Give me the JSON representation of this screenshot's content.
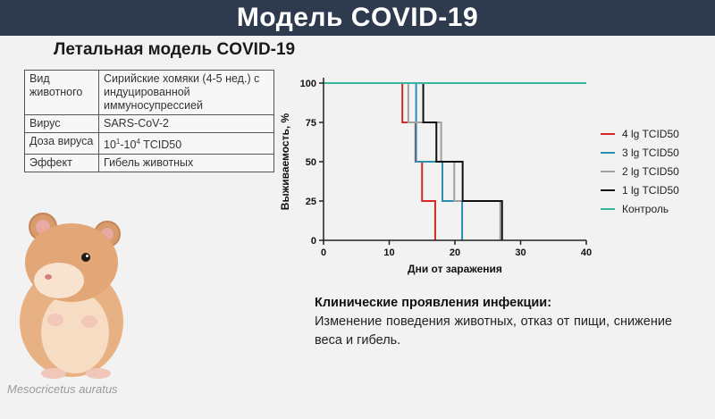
{
  "header": {
    "title": "Модель COVID-19"
  },
  "subtitle": "Летальная модель COVID-19",
  "info_table": {
    "rows": [
      {
        "key": "Вид животного",
        "value": "Сирийские хомяки (4-5 нед.) с индуцированной иммуносупрессией"
      },
      {
        "key": "Вирус",
        "value": "SARS-CoV-2"
      },
      {
        "key": "Доза вируса",
        "value_base1": "10",
        "value_exp1": "1",
        "value_mid": "-10",
        "value_exp2": "4",
        "value_tail": " TCID50"
      },
      {
        "key": "Эффект",
        "value": "Гибель животных"
      }
    ]
  },
  "species_caption": "Mesocricetus auratus",
  "chart_data": {
    "type": "line",
    "subtype": "kaplan-meier step",
    "xlabel": "Дни от заражения",
    "ylabel": "Выживаемость, %",
    "xlim": [
      0,
      40
    ],
    "ylim": [
      0,
      100
    ],
    "x_ticks": [
      0,
      10,
      20,
      30,
      40
    ],
    "y_ticks": [
      0,
      25,
      50,
      75,
      100
    ],
    "grid": false,
    "legend_position": "right",
    "series": [
      {
        "name": "4 lg TCID50",
        "color": "#d62728",
        "points": [
          [
            0,
            100
          ],
          [
            12,
            100
          ],
          [
            12,
            75
          ],
          [
            14,
            75
          ],
          [
            14,
            50
          ],
          [
            15,
            50
          ],
          [
            15,
            25
          ],
          [
            17,
            25
          ],
          [
            17,
            0
          ]
        ]
      },
      {
        "name": "3 lg TCID50",
        "color": "#2b8fb0",
        "points": [
          [
            0,
            100
          ],
          [
            14,
            100
          ],
          [
            14,
            50
          ],
          [
            18,
            50
          ],
          [
            18,
            25
          ],
          [
            21,
            25
          ],
          [
            21,
            0
          ]
        ]
      },
      {
        "name": "2 lg TCID50",
        "color": "#a0a0a0",
        "points": [
          [
            0,
            100
          ],
          [
            13,
            100
          ],
          [
            13,
            75
          ],
          [
            18,
            75
          ],
          [
            18,
            50
          ],
          [
            20,
            50
          ],
          [
            20,
            25
          ],
          [
            27,
            25
          ],
          [
            27,
            0
          ]
        ]
      },
      {
        "name": "1 lg TCID50",
        "color": "#111111",
        "points": [
          [
            0,
            100
          ],
          [
            15,
            100
          ],
          [
            15,
            75
          ],
          [
            17,
            75
          ],
          [
            17,
            50
          ],
          [
            21,
            50
          ],
          [
            21,
            25
          ],
          [
            27,
            25
          ],
          [
            27,
            0
          ]
        ]
      },
      {
        "name": "Контроль",
        "color": "#3ab5a0",
        "points": [
          [
            0,
            100
          ],
          [
            40,
            100
          ]
        ]
      }
    ]
  },
  "clinical": {
    "title": "Клинические проявления инфекции:",
    "text": "Изменение поведения животных, отказ от пищи, снижение веса и гибель."
  }
}
